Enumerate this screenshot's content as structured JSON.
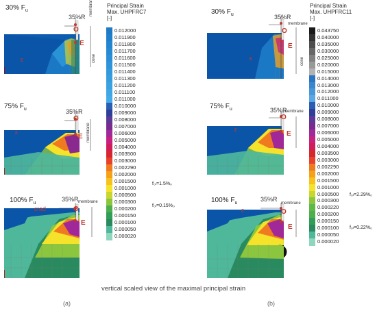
{
  "left": {
    "legend": {
      "title_line1": "Principal Strain",
      "title_line2": "Max. UHPFRC7",
      "title_line3": "[-]",
      "ticks": [
        "0.012000",
        "0.011900",
        "0.011800",
        "0.011700",
        "0.011600",
        "0.011500",
        "0.011400",
        "0.011300",
        "0.011200",
        "0.011100",
        "0.011000",
        "0.010000",
        "0.009000",
        "0.008000",
        "0.007000",
        "0.006000",
        "0.005000",
        "0.004000",
        "0.003500",
        "0.003000",
        "0.002290",
        "0.002000",
        "0.001500",
        "0.001000",
        "0.000500",
        "0.000300",
        "0.000200",
        "0.000150",
        "0.000100",
        "0.000050",
        "0.000020"
      ],
      "colors": [
        "#1d7ac6",
        "#1f7fcb",
        "#2384cf",
        "#2789d2",
        "#2b8ed6",
        "#2f93d9",
        "#3398dc",
        "#379ddf",
        "#3ba2e2",
        "#3fa7e5",
        "#43ace8",
        "#2a5eb5",
        "#2e3f9a",
        "#5a3a96",
        "#7a2a8f",
        "#a02898",
        "#c8207f",
        "#d11c5b",
        "#d8262f",
        "#e8412b",
        "#f07a1f",
        "#f5a21a",
        "#f7c21c",
        "#f5e22a",
        "#c8d630",
        "#8cc63f",
        "#4cae4c",
        "#2f9e56",
        "#2a8a5f",
        "#4fb89b",
        "#8fd6bf"
      ],
      "fib_high": "f₀ₗ=1.5%₀",
      "fib_low": "f₀ₗ=0.15%₀"
    },
    "panels": [
      {
        "load": "30% F",
        "sub": "u",
        "radius": "35%R",
        "membrane": "membrane",
        "cone": "cone",
        "o": "O",
        "e": "E",
        "eps": "ε"
      },
      {
        "load": "75% F",
        "sub": "u",
        "radius": "35%R",
        "membrane": "membrane",
        "o": "O",
        "e": "E",
        "eps": "ε"
      },
      {
        "load": "100% F",
        "sub": "u",
        "radius": "35%R",
        "membrane": "membrane",
        "o": "O",
        "e": "E",
        "eps": "εrad"
      }
    ],
    "caption": "(a)"
  },
  "right": {
    "legend": {
      "title_line1": "Principal Strain",
      "title_line2": "Max. UHPFRC11",
      "title_line3": "[-]",
      "ticks": [
        "0.043750",
        "0.040000",
        "0.035000",
        "0.030000",
        "0.025000",
        "0.020000",
        "0.015000",
        "0.014000",
        "0.013000",
        "0.012000",
        "0.011000",
        "0.010000",
        "0.009000",
        "0.008000",
        "0.007000",
        "0.006000",
        "0.005000",
        "0.004000",
        "0.003500",
        "0.003000",
        "0.002290",
        "0.002000",
        "0.001500",
        "0.001000",
        "0.000500",
        "0.000300",
        "0.000220",
        "0.000200",
        "0.000150",
        "0.000100",
        "0.000050",
        "0.000020"
      ],
      "colors": [
        "#1a1a1a",
        "#333333",
        "#4d4d4d",
        "#666666",
        "#808080",
        "#999999",
        "#b3b3b3",
        "#2c75c2",
        "#3a86cf",
        "#4897da",
        "#5aa8e3",
        "#2a5eb5",
        "#2e3f9a",
        "#5a3a96",
        "#7a2a8f",
        "#a02898",
        "#c8207f",
        "#d11c5b",
        "#d8262f",
        "#e8412b",
        "#f07a1f",
        "#f5a21a",
        "#f7c21c",
        "#f5e22a",
        "#c8d630",
        "#8cc63f",
        "#60b848",
        "#4cae4c",
        "#2f9e56",
        "#2a8a5f",
        "#4fb89b",
        "#8fd6bf"
      ],
      "fib_high": "f₀ₗ=2.29%₀",
      "fib_low": "f₀ₗ=0.22%₀"
    },
    "panels": [
      {
        "load": "30% F",
        "sub": "u",
        "radius": "35%R",
        "membrane": "membrane",
        "cone": "cone",
        "o": "O",
        "e": "E",
        "eps": "ε"
      },
      {
        "load": "75% F",
        "sub": "u",
        "radius": "35%R",
        "membrane": "membrane",
        "o": "O",
        "e": "E",
        "eps": "ε"
      },
      {
        "load": "100% F",
        "sub": "u",
        "radius": "35%R",
        "membrane": "membrane",
        "o": "O",
        "e": "E",
        "eps": "ε"
      }
    ],
    "caption": "(b)"
  },
  "bottom_caption": "vertical scaled view  of the maximal principal strain"
}
